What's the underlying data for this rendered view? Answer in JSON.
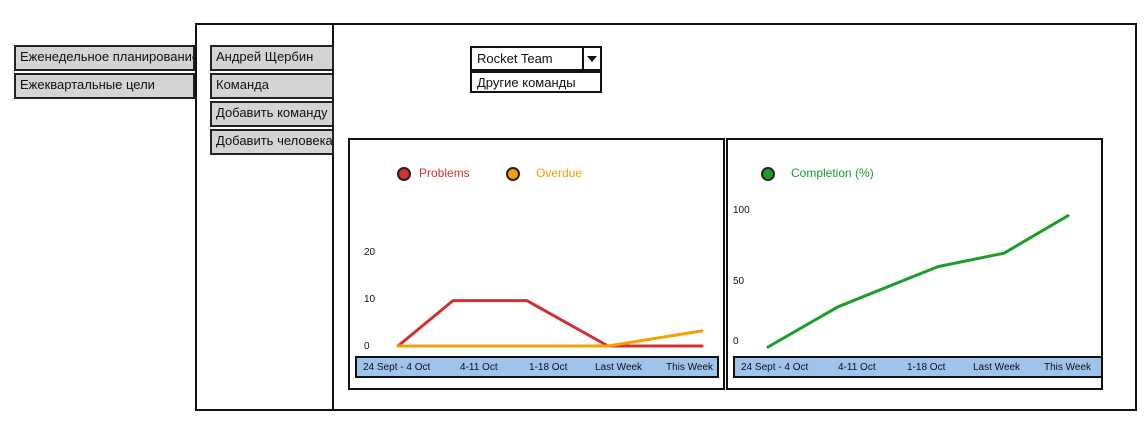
{
  "left_nav": [
    {
      "label": "Еженедельное планирование"
    },
    {
      "label": "Ежеквартальные цели"
    }
  ],
  "sub_nav": [
    {
      "label": "Андрей Щербин"
    },
    {
      "label": "Команда"
    },
    {
      "label": "Добавить команду"
    },
    {
      "label": "Добавить человека"
    }
  ],
  "team_select": {
    "selected": "Rocket Team",
    "option": "Другие команды",
    "arrow_icon": "chevron-down-icon"
  },
  "colors": {
    "problems": "#d32f2f",
    "overdue": "#f5a000",
    "completion": "#1a9e2a",
    "axis_strip": "#9fc3ea"
  },
  "chart_data": [
    {
      "type": "line",
      "categories": [
        "24 Sept - 4 Oct",
        "4-11 Oct",
        "1-18 Oct",
        "Last Week",
        "This Week"
      ],
      "yticks": [
        "0",
        "10",
        "20"
      ],
      "ylim": [
        0,
        25
      ],
      "legend_position": "top-left",
      "series": [
        {
          "name": "Problems",
          "values": [
            0,
            9,
            9,
            0,
            0
          ]
        },
        {
          "name": "Overdue",
          "values": [
            0,
            0,
            0,
            0,
            3
          ]
        }
      ]
    },
    {
      "type": "line",
      "categories": [
        "24 Sept - 4 Oct",
        "4-11 Oct",
        "1-18 Oct",
        "Last Week",
        "This Week"
      ],
      "yticks": [
        "0",
        "50",
        "100"
      ],
      "ylim": [
        0,
        100
      ],
      "legend_position": "top-left",
      "series": [
        {
          "name": "Completion (%)",
          "values": [
            0,
            30,
            60,
            70,
            98
          ]
        }
      ]
    }
  ]
}
